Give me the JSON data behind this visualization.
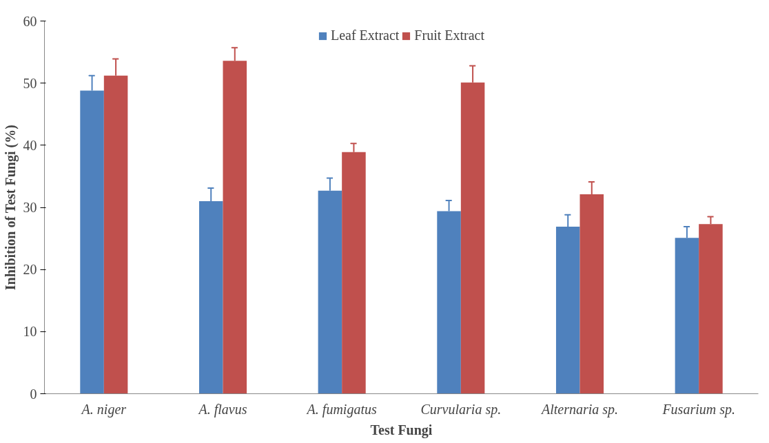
{
  "chart_data": {
    "type": "bar",
    "xlabel": "Test Fungi",
    "ylabel": "Inhibition of Test Fungi (%)",
    "categories": [
      "A. niger",
      "A. flavus",
      "A. fumigatus",
      "Curvularia sp.",
      "Alternaria sp.",
      "Fusarium sp."
    ],
    "series": [
      {
        "name": "Leaf Extract",
        "color": "#4f81bd",
        "values": [
          48.8,
          31.0,
          32.7,
          29.4,
          26.9,
          25.1
        ],
        "errors": [
          [
            48.8,
            51.2
          ],
          [
            31.0,
            33.1
          ],
          [
            32.7,
            34.7
          ],
          [
            29.4,
            31.1
          ],
          [
            26.9,
            28.8
          ],
          [
            25.1,
            26.9
          ]
        ]
      },
      {
        "name": "Fruit Extract",
        "color": "#c0504d",
        "values": [
          51.2,
          53.6,
          38.9,
          50.1,
          32.1,
          27.3
        ],
        "errors": [
          [
            51.2,
            53.9
          ],
          [
            53.6,
            55.7
          ],
          [
            38.9,
            40.3
          ],
          [
            50.1,
            52.8
          ],
          [
            32.1,
            34.1
          ],
          [
            27.3,
            28.5
          ]
        ]
      }
    ],
    "ylim": [
      0,
      60
    ],
    "yticks": [
      0,
      10,
      20,
      30,
      40,
      50,
      60
    ],
    "grid": false,
    "legend": "top"
  }
}
